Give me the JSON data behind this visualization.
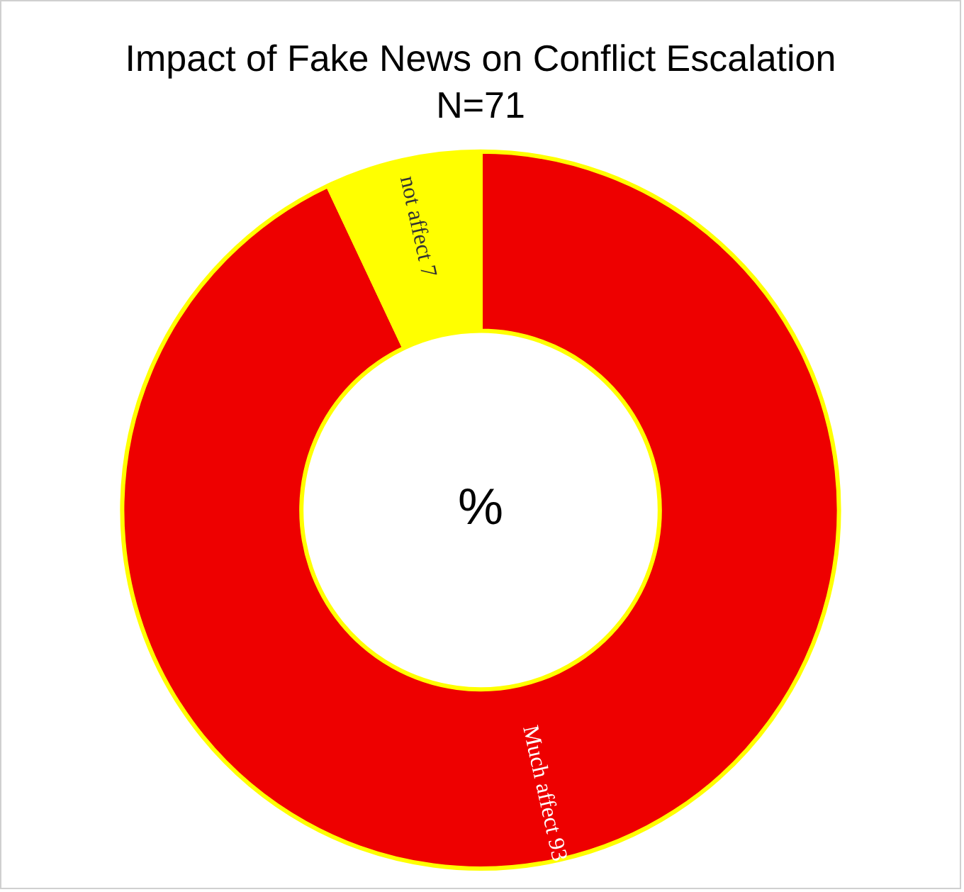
{
  "chart_data": {
    "type": "donut",
    "title": "Impact of Fake News on Conflict Escalation",
    "subtitle": "N=71",
    "categories": [
      "Much affect",
      "not affect"
    ],
    "values": [
      93,
      7
    ],
    "colors": [
      "#ee0000",
      "#ffff00"
    ],
    "data_labels": true,
    "annotations": [
      "%"
    ],
    "legend": false
  }
}
